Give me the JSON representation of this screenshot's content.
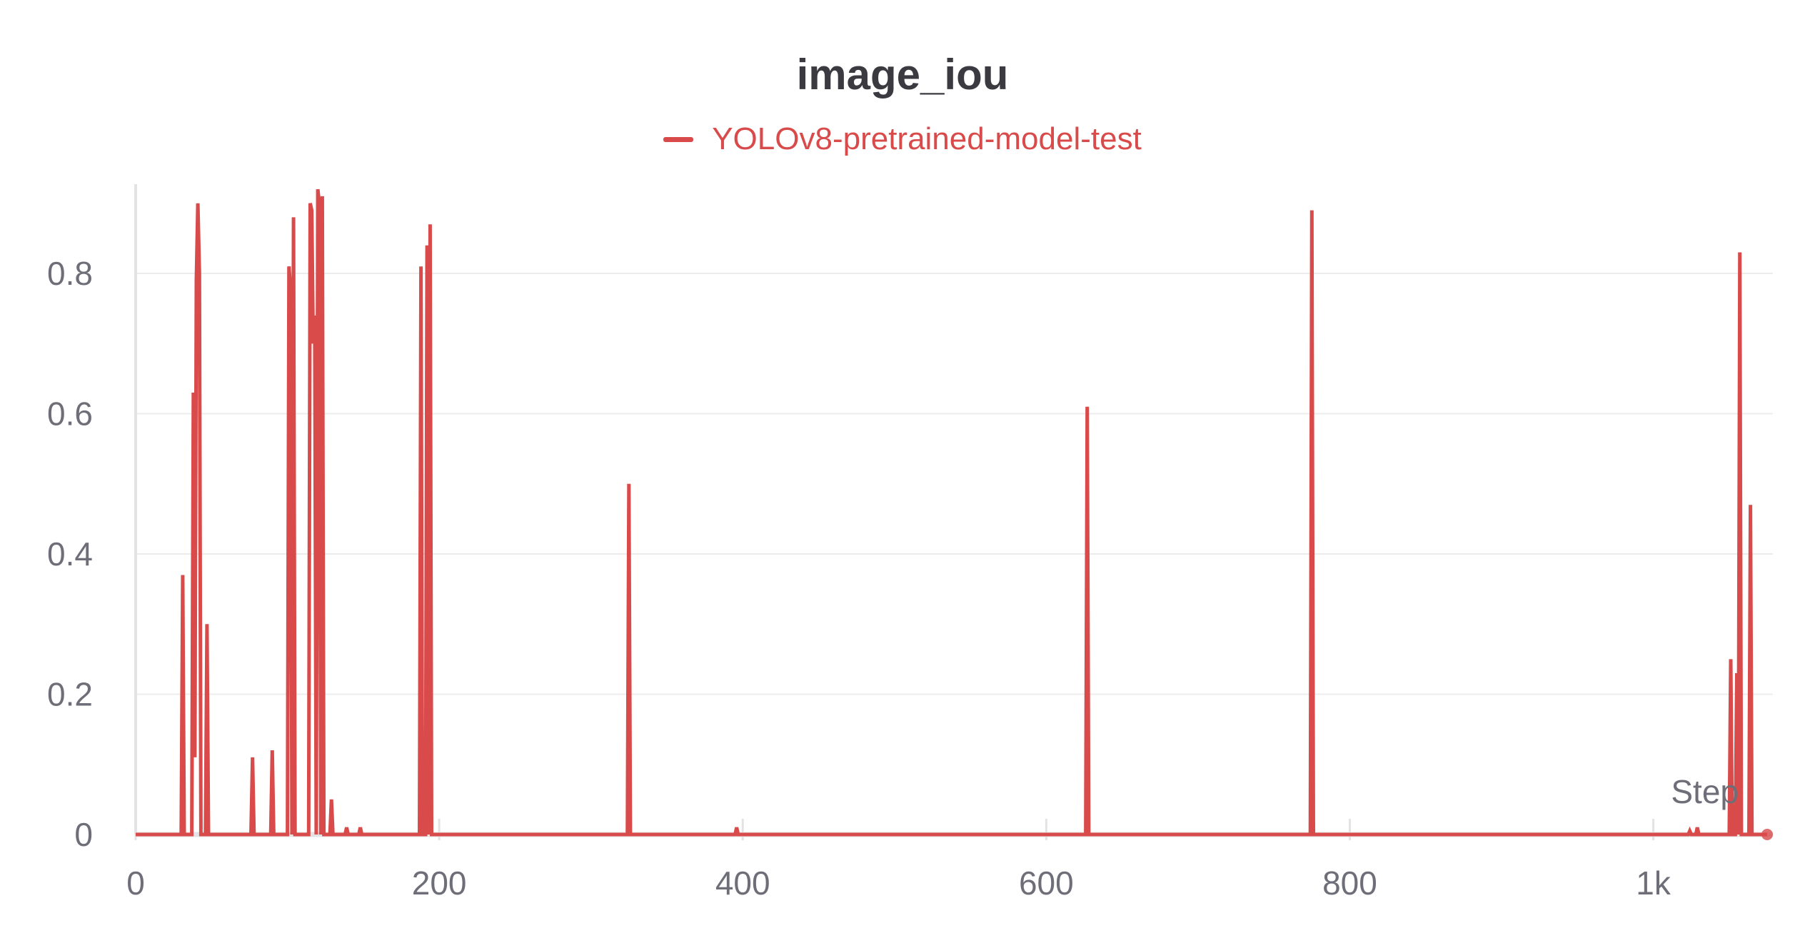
{
  "colors": {
    "series": "#d94a4a",
    "grid": "#ececec",
    "axis": "#e3e3e6",
    "text": "#6e6e78",
    "title": "#3a3a40"
  },
  "chart_data": {
    "type": "line",
    "title": "image_iou",
    "xlabel": "Step",
    "ylabel": "",
    "xlim": [
      0,
      1075
    ],
    "ylim": [
      0,
      0.92
    ],
    "grid": true,
    "legend": "top-center",
    "x_ticks": [
      {
        "value": 0,
        "label": "0"
      },
      {
        "value": 200,
        "label": "200"
      },
      {
        "value": 400,
        "label": "400"
      },
      {
        "value": 600,
        "label": "600"
      },
      {
        "value": 800,
        "label": "800"
      },
      {
        "value": 1000,
        "label": "1k"
      }
    ],
    "y_ticks": [
      {
        "value": 0,
        "label": "0"
      },
      {
        "value": 0.2,
        "label": "0.2"
      },
      {
        "value": 0.4,
        "label": "0.4"
      },
      {
        "value": 0.6,
        "label": "0.6"
      },
      {
        "value": 0.8,
        "label": "0.8"
      }
    ],
    "series": [
      {
        "name": "YOLOv8-pretrained-model-test",
        "color": "#d94a4a",
        "points": [
          [
            0,
            0
          ],
          [
            30,
            0
          ],
          [
            31,
            0.37
          ],
          [
            32,
            0
          ],
          [
            37,
            0
          ],
          [
            38,
            0.63
          ],
          [
            39,
            0.11
          ],
          [
            40,
            0.79
          ],
          [
            41,
            0.9
          ],
          [
            42,
            0.8
          ],
          [
            43,
            0
          ],
          [
            46,
            0
          ],
          [
            47,
            0.3
          ],
          [
            48,
            0
          ],
          [
            76,
            0
          ],
          [
            77,
            0.11
          ],
          [
            78,
            0
          ],
          [
            89,
            0
          ],
          [
            90,
            0.12
          ],
          [
            91,
            0
          ],
          [
            100,
            0
          ],
          [
            101,
            0.81
          ],
          [
            102,
            0.78
          ],
          [
            103,
            0
          ],
          [
            104,
            0.88
          ],
          [
            105,
            0
          ],
          [
            114,
            0
          ],
          [
            115,
            0.9
          ],
          [
            116,
            0.89
          ],
          [
            117,
            0.7
          ],
          [
            118,
            0.74
          ],
          [
            119,
            0
          ],
          [
            120,
            0.92
          ],
          [
            121,
            0.9
          ],
          [
            122,
            0
          ],
          [
            123,
            0.91
          ],
          [
            124,
            0
          ],
          [
            128,
            0
          ],
          [
            129,
            0.05
          ],
          [
            130,
            0
          ],
          [
            138,
            0
          ],
          [
            139,
            0.01
          ],
          [
            140,
            0
          ],
          [
            147,
            0
          ],
          [
            148,
            0.01
          ],
          [
            149,
            0
          ],
          [
            187,
            0
          ],
          [
            188,
            0.81
          ],
          [
            189,
            0
          ],
          [
            191,
            0
          ],
          [
            192,
            0.84
          ],
          [
            193,
            0
          ],
          [
            194,
            0.87
          ],
          [
            195,
            0
          ],
          [
            324,
            0
          ],
          [
            325,
            0.5
          ],
          [
            326,
            0
          ],
          [
            395,
            0
          ],
          [
            396,
            0.01
          ],
          [
            397,
            0
          ],
          [
            626,
            0
          ],
          [
            627,
            0.61
          ],
          [
            628,
            0
          ],
          [
            774,
            0
          ],
          [
            775,
            0.89
          ],
          [
            776,
            0
          ],
          [
            1023,
            0
          ],
          [
            1024,
            0.005
          ],
          [
            1025,
            0
          ],
          [
            1028,
            0
          ],
          [
            1029,
            0.01
          ],
          [
            1030,
            0
          ],
          [
            1050,
            0
          ],
          [
            1051,
            0.25
          ],
          [
            1052,
            0
          ],
          [
            1054,
            0
          ],
          [
            1055,
            0.23
          ],
          [
            1056,
            0
          ],
          [
            1057,
            0.83
          ],
          [
            1058,
            0
          ],
          [
            1063,
            0
          ],
          [
            1064,
            0.47
          ],
          [
            1065,
            0
          ],
          [
            1075,
            0
          ]
        ]
      }
    ]
  }
}
